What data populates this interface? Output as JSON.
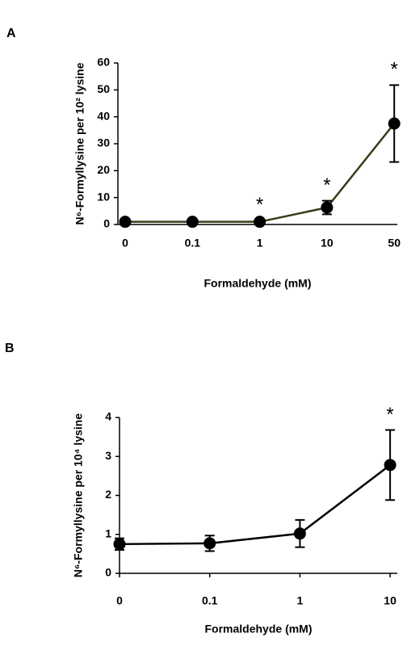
{
  "chart_data": [
    {
      "type": "line",
      "panel_label": "A",
      "x_label": "Formaldehyde (mM)",
      "y_label": "N⁶-Formyllysine per 10² lysine",
      "categories": [
        "0",
        "0.1",
        "1",
        "10",
        "50"
      ],
      "values": [
        1.0,
        1.0,
        1.0,
        6.3,
        37.5
      ],
      "errors": [
        0.6,
        0.6,
        0.6,
        2.5,
        14.3
      ],
      "annotations": [
        null,
        null,
        "*",
        "*",
        "*"
      ],
      "color": "#3a3a18",
      "marker_color": "#000000",
      "ylim": [
        0,
        60
      ],
      "yticks": [
        0,
        10,
        20,
        30,
        40,
        50,
        60
      ]
    },
    {
      "type": "line",
      "panel_label": "B",
      "x_label": "Formaldehyde (mM)",
      "y_label": "N⁶-Formyllysine per 10⁴ lysine",
      "categories": [
        "0",
        "0.1",
        "1",
        "10"
      ],
      "values": [
        0.75,
        0.77,
        1.02,
        2.78
      ],
      "errors": [
        0.15,
        0.2,
        0.35,
        0.9
      ],
      "annotations": [
        null,
        null,
        null,
        "*"
      ],
      "color": "#000000",
      "marker_color": "#000000",
      "ylim": [
        0,
        4
      ],
      "yticks": [
        0,
        1,
        2,
        3,
        4
      ]
    }
  ]
}
